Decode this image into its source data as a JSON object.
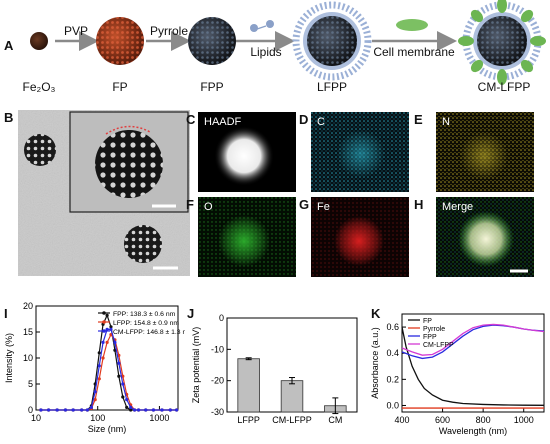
{
  "panels": {
    "A": "A",
    "B": "B",
    "C": "C",
    "D": "D",
    "E": "E",
    "F": "F",
    "G": "G",
    "H": "H",
    "I": "I",
    "J": "J",
    "K": "K"
  },
  "scheme": {
    "fe2o3": "Fe₂O₃",
    "fp": "FP",
    "fpp": "FPP",
    "lfpp": "LFPP",
    "cmlfpp": "CM-LFPP",
    "pvp": "PVP",
    "pyrrole": "Pyrrole",
    "lipids": "Lipids",
    "cell_membrane": "Cell membrane"
  },
  "eds": {
    "haadf": "HAADF",
    "c": "C",
    "n": "N",
    "o": "O",
    "fe": "Fe",
    "merge": "Merge",
    "colors": {
      "c": "#2fbcd4",
      "n": "#c8b42a",
      "o": "#2fb82f",
      "fe": "#e02020"
    }
  },
  "chart_data": [
    {
      "type": "line",
      "panel": "I",
      "xlabel": "Size (nm)",
      "ylabel": "Intensity (%)",
      "xscale": "log",
      "xlim": [
        10,
        2000
      ],
      "ylim": [
        0,
        20
      ],
      "xticks": [
        "10",
        "100",
        "1000"
      ],
      "yticks": [
        "0",
        "5",
        "10",
        "15",
        "20"
      ],
      "legend_position": "top-right",
      "series": [
        {
          "name": "FPP: 138.3 ± 0.6 nm",
          "color": "#111111",
          "x": [
            68,
            79,
            91,
            106,
            122,
            142,
            164,
            190,
            220,
            255,
            295,
            342,
            396,
            459
          ],
          "y": [
            0,
            0.8,
            5,
            11,
            16.5,
            18.2,
            16,
            11.5,
            6.5,
            2.5,
            0.5,
            0,
            0,
            0
          ]
        },
        {
          "name": "LFPP: 154.8 ± 0.9 nm",
          "color": "#e03a1e",
          "x": [
            68,
            79,
            91,
            106,
            122,
            142,
            164,
            190,
            220,
            255,
            295,
            342,
            396,
            459
          ],
          "y": [
            0,
            0.3,
            2,
            6,
            10,
            13,
            14.5,
            13.5,
            10.5,
            6.5,
            3,
            1,
            0,
            0
          ]
        },
        {
          "name": "CM-LFPP: 146.8 ± 1.3 nm",
          "color": "#2a2ae0",
          "x": [
            68,
            79,
            91,
            106,
            122,
            142,
            164,
            190,
            220,
            255,
            295,
            342,
            396,
            459
          ],
          "y": [
            0,
            0.5,
            3.5,
            8.5,
            13,
            15.5,
            15.5,
            13,
            9,
            5,
            2,
            0.5,
            0,
            0
          ]
        }
      ]
    },
    {
      "type": "bar",
      "panel": "J",
      "ylabel": "Zeta potential (mV)",
      "categories": [
        "LFPP",
        "CM-LFPP",
        "CM"
      ],
      "values": [
        -13,
        -20,
        -28
      ],
      "errors": [
        0.3,
        1.0,
        2.5
      ],
      "ylim": [
        0,
        -30
      ],
      "yticks": [
        "0",
        "-10",
        "-20",
        "-30"
      ]
    },
    {
      "type": "line",
      "panel": "K",
      "xlabel": "Wavelength (nm)",
      "ylabel": "Absorbance (a.u.)",
      "xlim": [
        400,
        1100
      ],
      "ylim": [
        -0.05,
        0.7
      ],
      "xticks": [
        "400",
        "600",
        "800",
        "1000"
      ],
      "yticks": [
        "0.0",
        "0.2",
        "0.4",
        "0.6"
      ],
      "legend_position": "top-left",
      "series": [
        {
          "name": "FP",
          "color": "#111111",
          "x": [
            400,
            420,
            450,
            480,
            510,
            550,
            600,
            650,
            700,
            800,
            900,
            1000,
            1100
          ],
          "y": [
            0.6,
            0.45,
            0.3,
            0.2,
            0.13,
            0.08,
            0.04,
            0.025,
            0.015,
            0.008,
            0.004,
            0.002,
            0.001
          ]
        },
        {
          "name": "Pyrrole",
          "color": "#e03a1e",
          "x": [
            400,
            500,
            600,
            700,
            800,
            900,
            1000,
            1100
          ],
          "y": [
            -0.02,
            -0.02,
            -0.02,
            -0.02,
            -0.02,
            -0.02,
            -0.02,
            -0.02
          ]
        },
        {
          "name": "FPP",
          "color": "#2a2ae0",
          "x": [
            400,
            450,
            500,
            550,
            600,
            650,
            700,
            750,
            800,
            850,
            900,
            950,
            1000,
            1050,
            1100
          ],
          "y": [
            0.41,
            0.38,
            0.36,
            0.37,
            0.41,
            0.47,
            0.53,
            0.58,
            0.605,
            0.615,
            0.61,
            0.6,
            0.585,
            0.575,
            0.57
          ]
        },
        {
          "name": "CM-LFPP",
          "color": "#d43ad4",
          "x": [
            400,
            450,
            500,
            550,
            600,
            650,
            700,
            750,
            800,
            850,
            900,
            950,
            1000,
            1050,
            1100
          ],
          "y": [
            0.44,
            0.41,
            0.385,
            0.39,
            0.43,
            0.49,
            0.55,
            0.595,
            0.615,
            0.62,
            0.615,
            0.6,
            0.585,
            0.575,
            0.565
          ]
        }
      ]
    }
  ]
}
